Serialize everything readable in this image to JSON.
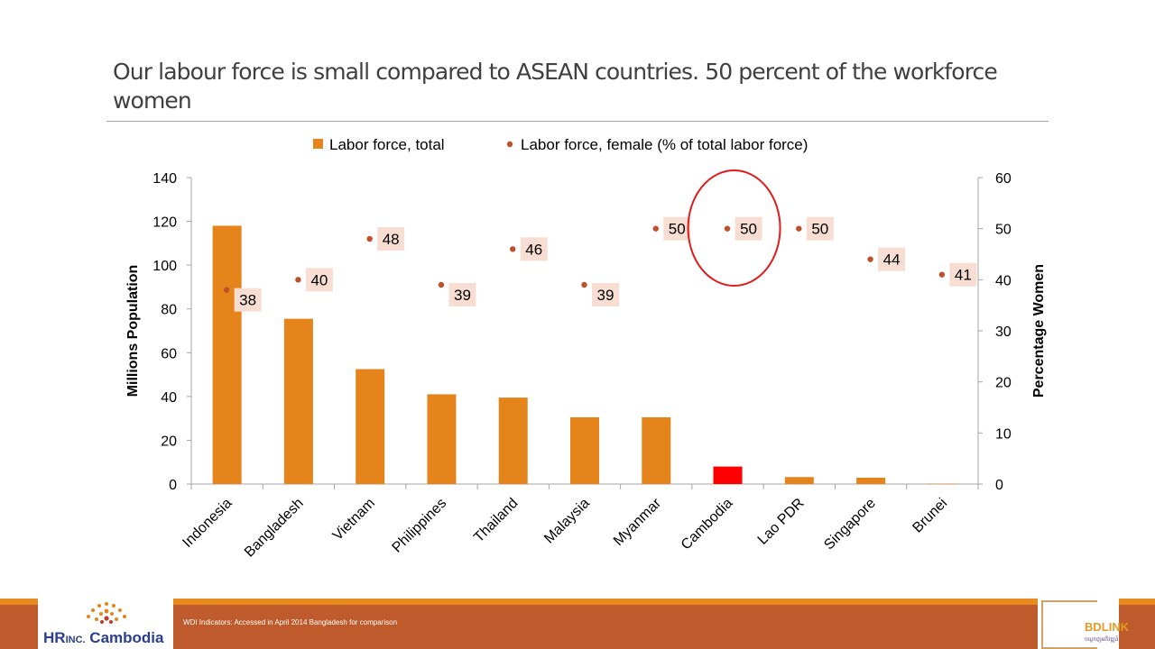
{
  "slide": {
    "title": "Our labour force is small compared to ASEAN countries.  50 percent of the workforce women",
    "footer_note": "WDI Indicators: Accessed in April 2014 Bangladesh for comparison",
    "logo_left": {
      "brand_a": "HR",
      "brand_b": "INC.",
      "brand_c": " Cambodia"
    },
    "logo_right": {
      "text": "BDLINK",
      "sub": "បណ្តាញអភិវឌ្ឍន៍"
    }
  },
  "colors": {
    "bar": "#e5841a",
    "bar_highlight": "#ff0000",
    "dot": "#c0502a",
    "label_bg": "#f8ddd2",
    "highlight_circle": "#e31a1c"
  },
  "chart_data": {
    "type": "bar",
    "categories": [
      "Indonesia",
      "Bangladesh",
      "Vietnam",
      "Philippines",
      "Thailand",
      "Malaysia",
      "Myanmar",
      "Cambodia",
      "Lao PDR",
      "Singapore",
      "Brunei"
    ],
    "series": [
      {
        "name": "Labor force, total",
        "type": "bar",
        "axis": "left",
        "values": [
          118,
          75.5,
          52.5,
          41,
          39.5,
          30.5,
          30.5,
          8,
          3.2,
          2.9,
          0.2
        ]
      },
      {
        "name": "Labor force, female (% of total labor force)",
        "type": "scatter",
        "axis": "right",
        "values": [
          38,
          40,
          48,
          39,
          46,
          39,
          50,
          50,
          50,
          44,
          41
        ],
        "labels": [
          "38",
          "40",
          "48",
          "39",
          "46",
          "39",
          "50",
          "50",
          "50",
          "44",
          "41"
        ]
      }
    ],
    "highlight_category": "Cambodia",
    "ylabel": "Millions Population",
    "y2label": "Percentage Women",
    "ylim": [
      0,
      140
    ],
    "y2lim": [
      0,
      60
    ],
    "yticks": [
      "0",
      "20",
      "40",
      "60",
      "80",
      "100",
      "120",
      "140"
    ],
    "y2ticks": [
      "0",
      "10",
      "20",
      "30",
      "40",
      "50",
      "60"
    ],
    "legend_position": "top",
    "grid": false
  }
}
